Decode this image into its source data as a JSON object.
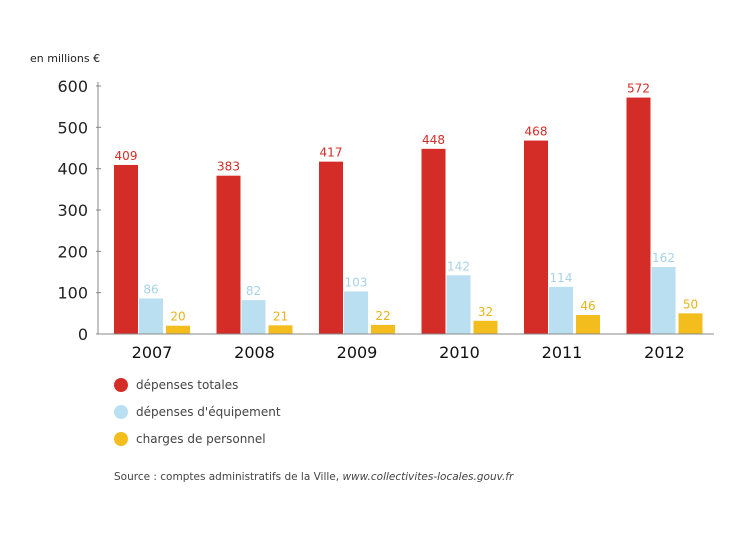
{
  "chart_data": {
    "type": "bar",
    "unit_label": "en millions €",
    "categories": [
      "2007",
      "2008",
      "2009",
      "2010",
      "2011",
      "2012"
    ],
    "series": [
      {
        "name": "dépenses totales",
        "color": "#d42d27",
        "values": [
          409,
          383,
          417,
          448,
          468,
          572
        ]
      },
      {
        "name": "dépenses d'équipement",
        "color": "#b9dff0",
        "values": [
          86,
          82,
          103,
          142,
          114,
          162
        ]
      },
      {
        "name": "charges de personnel",
        "color": "#f3bd1e",
        "values": [
          20,
          21,
          22,
          32,
          46,
          50
        ]
      }
    ],
    "ylim": [
      0,
      600
    ],
    "yticks": [
      0,
      100,
      200,
      300,
      400,
      500,
      600
    ],
    "grid": false,
    "legend_position": "bottom-left"
  },
  "label_colors": [
    "#d42d27",
    "#a7d3e8",
    "#e8b31a"
  ],
  "source": {
    "prefix": "Source : comptes administratifs de la Ville, ",
    "link": "www.collectivites-locales.gouv.fr"
  }
}
